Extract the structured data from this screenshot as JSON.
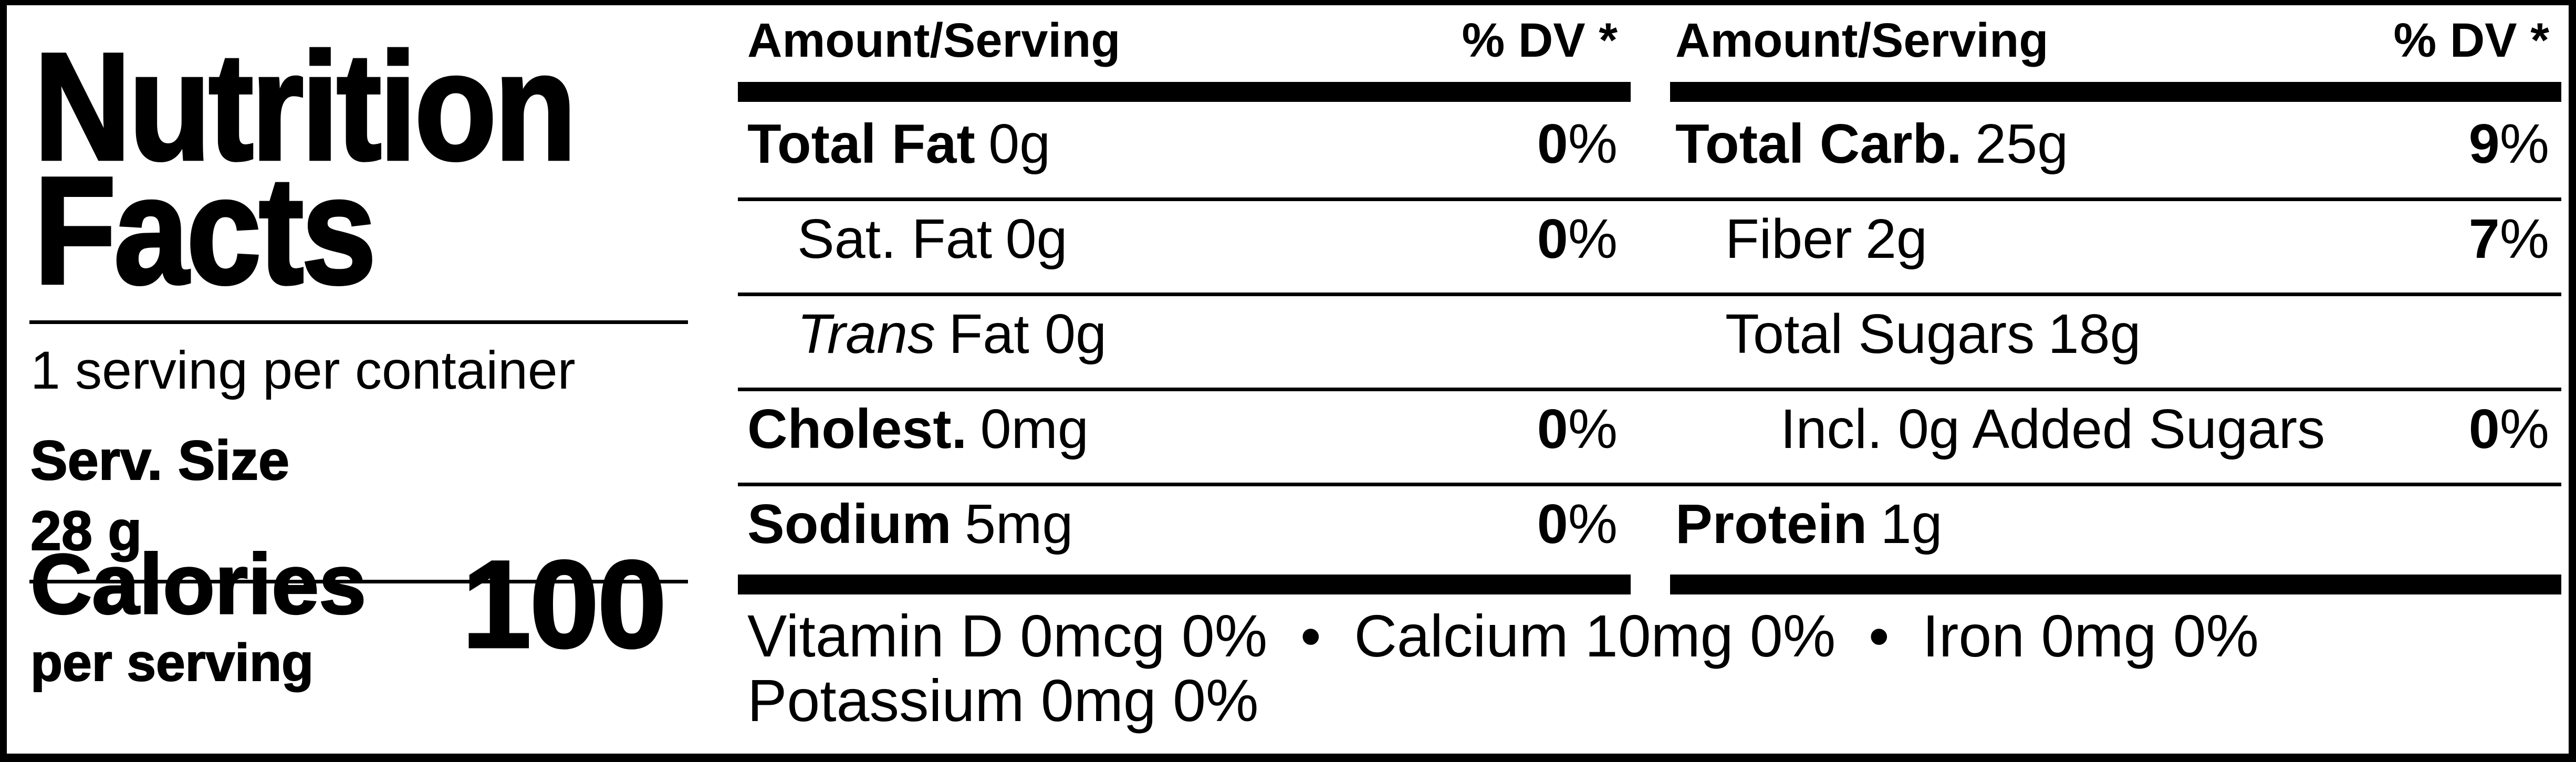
{
  "label": {
    "title_lines": [
      "Nutrition",
      "Facts"
    ],
    "servings_per_container": "1 serving per container",
    "serving_size_label": "Serv. Size",
    "serving_size_value": "28 g",
    "calories_label": "Calories",
    "calories_sub": "per serving",
    "calories_value": "100"
  },
  "table": {
    "percent_sign": "%",
    "col1": {
      "header": {
        "amount": "Amount/Serving",
        "dv": "% DV *"
      },
      "rows": [
        {
          "name": "Total Fat",
          "amount": "0g",
          "dv": "0"
        },
        {
          "name": "Sat. Fat",
          "amount": "0g",
          "dv": "0"
        },
        {
          "name": "Trans",
          "amount": "Fat 0g",
          "dv": ""
        },
        {
          "name": "Cholest.",
          "amount": "0mg",
          "dv": "0"
        },
        {
          "name": "Sodium",
          "amount": "5mg",
          "dv": "0"
        }
      ]
    },
    "col2": {
      "header": {
        "amount": "Amount/Serving",
        "dv": "% DV *"
      },
      "rows": [
        {
          "name": "Total Carb.",
          "amount": "25g",
          "dv": "9"
        },
        {
          "name": "Fiber",
          "amount": "2g",
          "dv": "7"
        },
        {
          "name": "Total Sugars",
          "amount": "18g",
          "dv": ""
        },
        {
          "name": "Incl. 0g Added Sugars",
          "amount": "",
          "dv": "0"
        },
        {
          "name": "Protein",
          "amount": "1g",
          "dv": ""
        }
      ]
    }
  },
  "micronutrients": {
    "line1": "Vitamin D 0mcg 0%  •  Calcium 10mg 0%  •  Iron 0mg 0%",
    "line2": "Potassium 0mg 0%"
  },
  "colors": {
    "ink": "#000000",
    "paper": "#ffffff"
  }
}
